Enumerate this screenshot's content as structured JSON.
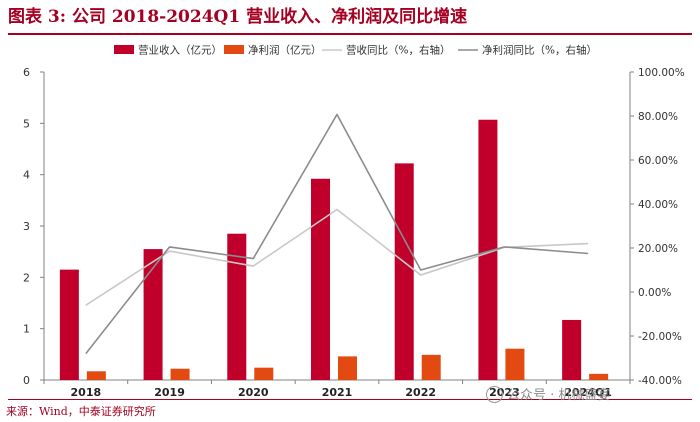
{
  "header": {
    "title": "图表 3: 公司 2018-2024Q1 营业收入、净利润及同比增速"
  },
  "footer": {
    "source": "来源：Wind，中泰证券研究所"
  },
  "watermark": {
    "text": "公众号 · 机械盛宴",
    "icon": "wechat-icon"
  },
  "colors": {
    "title": "#a50021",
    "revenue": "#c0002b",
    "net_profit": "#e34a12",
    "revenue_growth": "#c8c8c8",
    "profit_growth": "#8c8c8c",
    "axis": "#808080"
  },
  "chart_data": {
    "type": "bar",
    "categories": [
      "2018",
      "2019",
      "2020",
      "2021",
      "2022",
      "2023",
      "2024Q1"
    ],
    "series": [
      {
        "name": "营业收入（亿元）",
        "type": "bar",
        "axis": "left",
        "values": [
          2.15,
          2.55,
          2.85,
          3.92,
          4.22,
          5.07,
          1.17
        ]
      },
      {
        "name": "净利润（亿元）",
        "type": "bar",
        "axis": "left",
        "values": [
          0.17,
          0.22,
          0.24,
          0.46,
          0.49,
          0.61,
          0.12
        ]
      },
      {
        "name": "营收同比（%，右轴）",
        "type": "line",
        "axis": "right",
        "values": [
          -6.0,
          18.6,
          11.8,
          37.5,
          7.7,
          20.3,
          22.0
        ]
      },
      {
        "name": "净利润同比（%，右轴）",
        "type": "line",
        "axis": "right",
        "values": [
          -28.0,
          20.5,
          15.2,
          80.7,
          10.0,
          20.5,
          17.5
        ]
      }
    ],
    "ylim": [
      0,
      6
    ],
    "yticks": [
      "0",
      "1",
      "2",
      "3",
      "4",
      "5",
      "6"
    ],
    "y2lim": [
      -40,
      100
    ],
    "y2ticks": [
      "-40.00%",
      "-20.00%",
      "0.00%",
      "20.00%",
      "40.00%",
      "60.00%",
      "80.00%",
      "100.00%"
    ],
    "legend_position": "top",
    "grid": false
  }
}
